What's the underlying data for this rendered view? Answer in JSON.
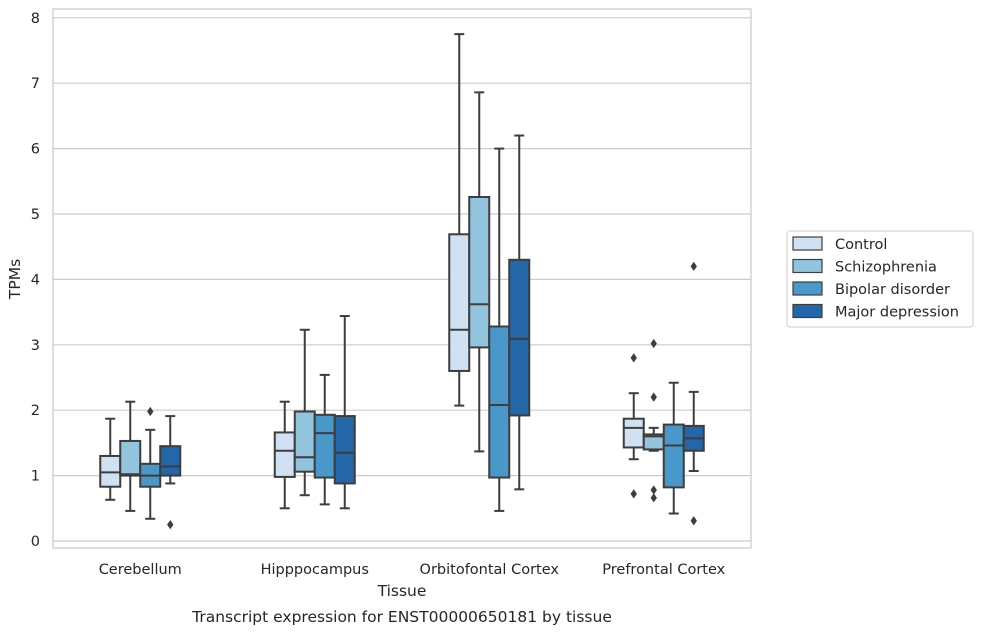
{
  "chart_data": {
    "type": "box",
    "xlabel": "Tissue",
    "ylabel": "TPMs",
    "caption": "Transcript expression for ENST00000650181 by tissue",
    "categories": [
      "Cerebellum",
      "Hipppocampus",
      "Orbitofontal Cortex",
      "Prefrontal Cortex"
    ],
    "ylim": [
      -0.1,
      8.15
    ],
    "yticks": [
      0,
      1,
      2,
      3,
      4,
      5,
      6,
      7,
      8
    ],
    "grid": "horizontal",
    "legend_position": "right",
    "series": [
      {
        "name": "Control",
        "color": "#cfe1f2",
        "boxes": [
          {
            "whisker_low": 0.63,
            "q1": 0.83,
            "median": 1.05,
            "q3": 1.3,
            "whisker_high": 1.87,
            "outliers": []
          },
          {
            "whisker_low": 0.5,
            "q1": 0.98,
            "median": 1.38,
            "q3": 1.66,
            "whisker_high": 2.13,
            "outliers": []
          },
          {
            "whisker_low": 2.07,
            "q1": 2.6,
            "median": 3.23,
            "q3": 4.69,
            "whisker_high": 7.75,
            "outliers": []
          },
          {
            "whisker_low": 1.25,
            "q1": 1.43,
            "median": 1.73,
            "q3": 1.87,
            "whisker_high": 2.26,
            "outliers": [
              2.8,
              0.72
            ]
          }
        ]
      },
      {
        "name": "Schizophrenia",
        "color": "#93c4de",
        "boxes": [
          {
            "whisker_low": 0.46,
            "q1": 1.0,
            "median": 1.02,
            "q3": 1.53,
            "whisker_high": 2.13,
            "outliers": []
          },
          {
            "whisker_low": 0.7,
            "q1": 1.06,
            "median": 1.28,
            "q3": 1.98,
            "whisker_high": 3.23,
            "outliers": []
          },
          {
            "whisker_low": 1.37,
            "q1": 2.96,
            "median": 3.62,
            "q3": 5.26,
            "whisker_high": 6.86,
            "outliers": []
          },
          {
            "whisker_low": 1.38,
            "q1": 1.4,
            "median": 1.6,
            "q3": 1.63,
            "whisker_high": 1.73,
            "outliers": [
              3.02,
              2.2,
              0.78,
              0.66
            ]
          }
        ]
      },
      {
        "name": "Bipolar disorder",
        "color": "#4a98c9",
        "boxes": [
          {
            "whisker_low": 0.34,
            "q1": 0.83,
            "median": 1.0,
            "q3": 1.18,
            "whisker_high": 1.7,
            "outliers": [
              1.98
            ]
          },
          {
            "whisker_low": 0.56,
            "q1": 0.97,
            "median": 1.65,
            "q3": 1.93,
            "whisker_high": 2.54,
            "outliers": []
          },
          {
            "whisker_low": 0.46,
            "q1": 0.97,
            "median": 2.08,
            "q3": 3.28,
            "whisker_high": 6.0,
            "outliers": []
          },
          {
            "whisker_low": 0.42,
            "q1": 0.82,
            "median": 1.46,
            "q3": 1.78,
            "whisker_high": 2.42,
            "outliers": []
          }
        ]
      },
      {
        "name": "Major depression",
        "color": "#2366aa",
        "boxes": [
          {
            "whisker_low": 0.88,
            "q1": 1.0,
            "median": 1.14,
            "q3": 1.45,
            "whisker_high": 1.91,
            "outliers": [
              0.25
            ]
          },
          {
            "whisker_low": 0.5,
            "q1": 0.88,
            "median": 1.35,
            "q3": 1.91,
            "whisker_high": 3.44,
            "outliers": []
          },
          {
            "whisker_low": 0.79,
            "q1": 1.92,
            "median": 3.09,
            "q3": 4.3,
            "whisker_high": 6.2,
            "outliers": []
          },
          {
            "whisker_low": 1.07,
            "q1": 1.38,
            "median": 1.57,
            "q3": 1.76,
            "whisker_high": 2.28,
            "outliers": [
              4.2,
              0.31
            ]
          }
        ]
      }
    ]
  }
}
